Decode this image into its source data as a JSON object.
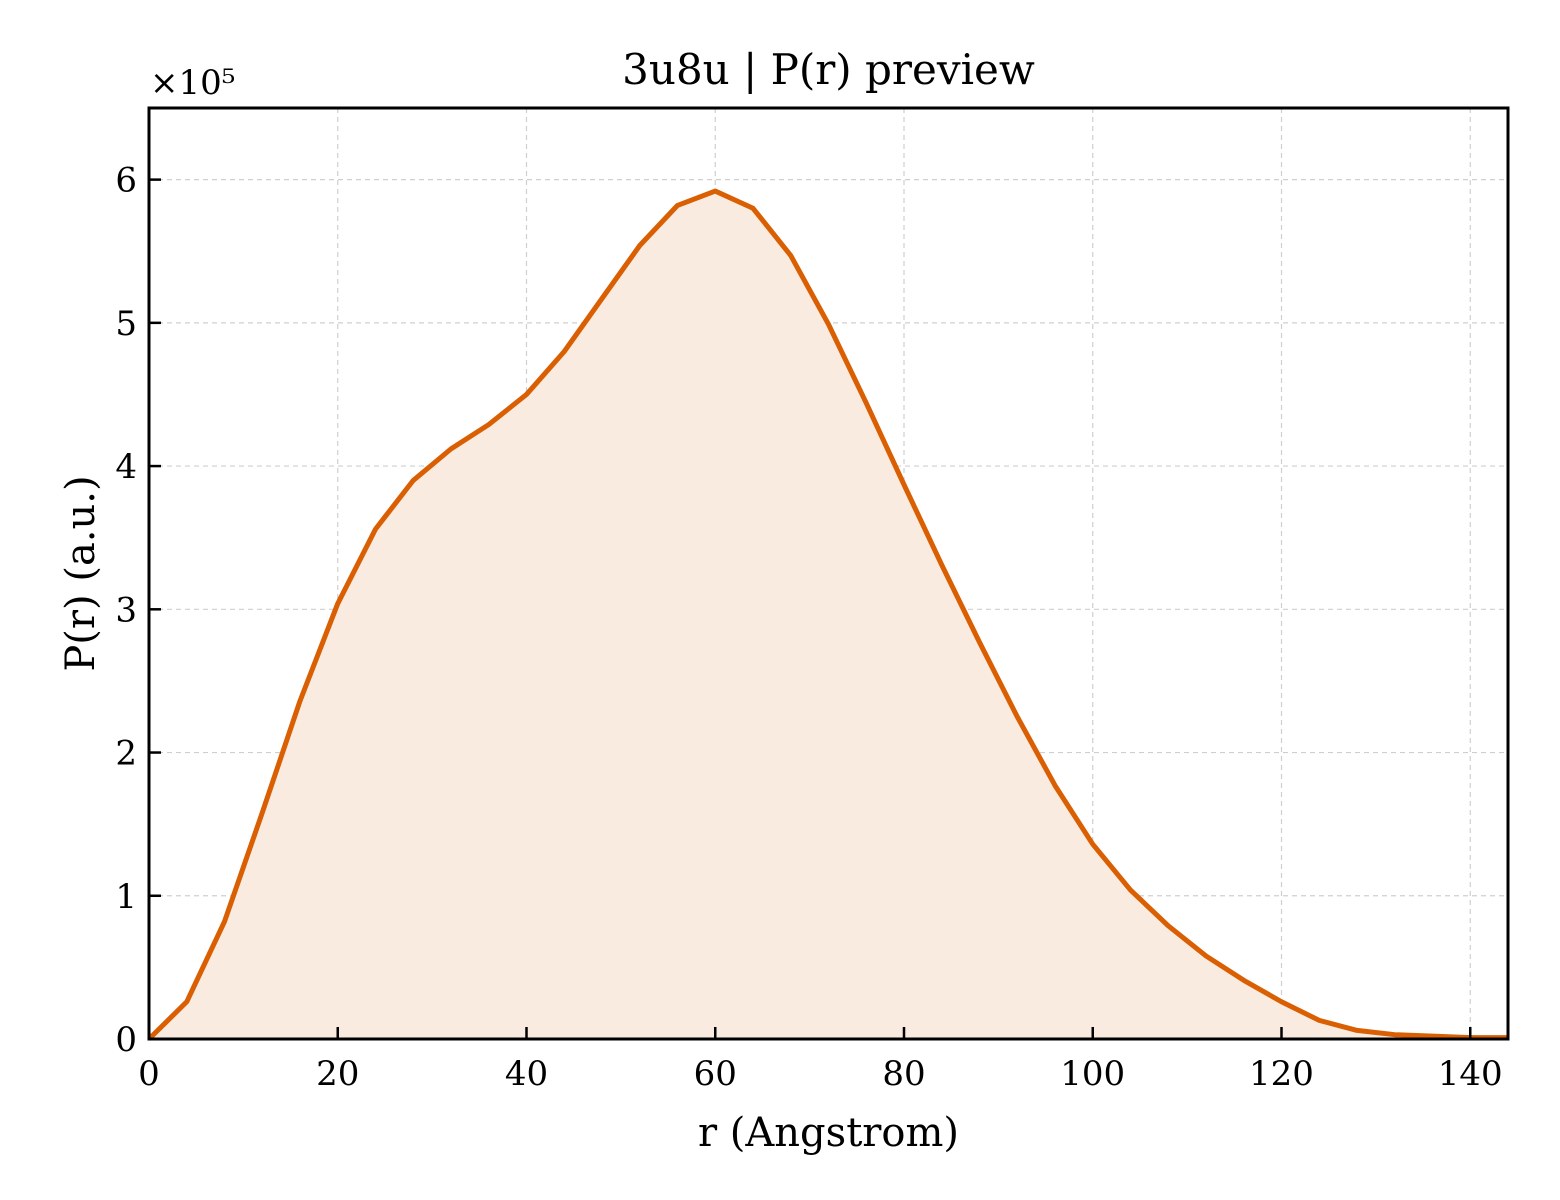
{
  "chart_data": {
    "type": "area",
    "title": "3u8u | P(r) preview",
    "xlabel": "r (Angstrom)",
    "ylabel": "P(r) (a.u.)",
    "y_multiplier_label": "×10⁵",
    "xlim": [
      0,
      144
    ],
    "ylim": [
      0,
      6.5
    ],
    "x_ticks": [
      0,
      20,
      40,
      60,
      80,
      100,
      120,
      140
    ],
    "y_ticks": [
      0,
      1,
      2,
      3,
      4,
      5,
      6
    ],
    "grid": true,
    "line_color": "#d95f02",
    "fill_color": "#f9ebe0",
    "series": [
      {
        "x": [
          0,
          4,
          8,
          12,
          16,
          20,
          24,
          28,
          32,
          36,
          40,
          44,
          48,
          52,
          56,
          60,
          64,
          68,
          72,
          76,
          80,
          84,
          88,
          92,
          96,
          100,
          104,
          108,
          112,
          116,
          120,
          124,
          128,
          132,
          136,
          140,
          144
        ],
        "values": [
          0.0,
          0.26,
          0.82,
          1.58,
          2.36,
          3.04,
          3.56,
          3.9,
          4.12,
          4.29,
          4.5,
          4.8,
          5.17,
          5.54,
          5.82,
          5.92,
          5.8,
          5.47,
          4.99,
          4.44,
          3.87,
          3.31,
          2.77,
          2.25,
          1.77,
          1.36,
          1.04,
          0.79,
          0.58,
          0.41,
          0.26,
          0.13,
          0.06,
          0.03,
          0.02,
          0.01,
          0.01
        ]
      }
    ]
  }
}
